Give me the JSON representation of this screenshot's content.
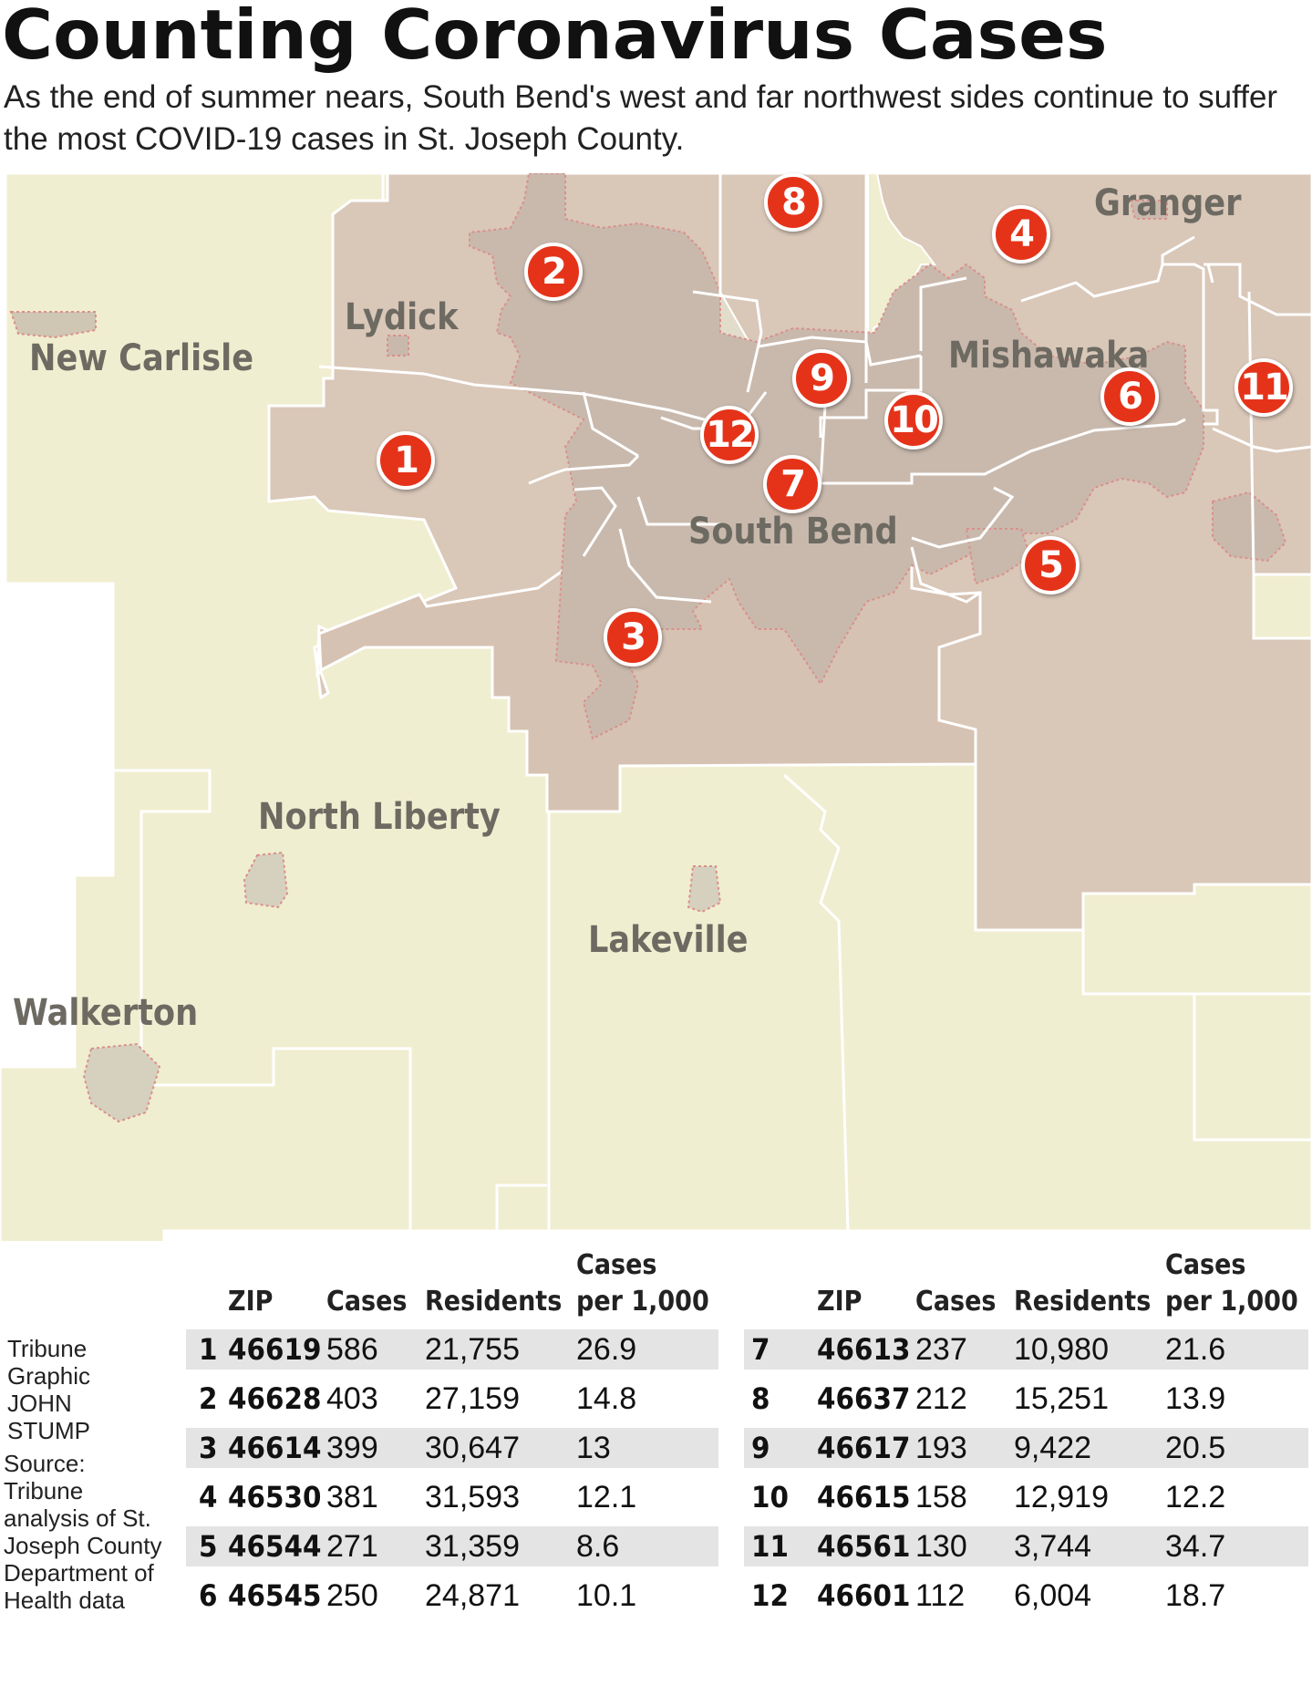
{
  "header": {
    "title": "Counting Coronavirus Cases",
    "subtitle": "As the end of summer nears, South Bend's west and far northwest sides continue to suffer the most COVID-19 cases in St. Joseph County."
  },
  "colors": {
    "rural_fill": "#f0eed0",
    "zip_fill": "#d9c7b8",
    "city_fill": "#c9b9ad",
    "boundary": "#ffffff",
    "marker": "#e5331a",
    "label": "#6d6a62",
    "row_shade": "#e4e4e4"
  },
  "map": {
    "places": [
      {
        "name": "New Carlisle"
      },
      {
        "name": "Lydick"
      },
      {
        "name": "Granger"
      },
      {
        "name": "Mishawaka"
      },
      {
        "name": "South Bend"
      },
      {
        "name": "North Liberty"
      },
      {
        "name": "Lakeville"
      },
      {
        "name": "Walkerton"
      }
    ],
    "markers": [
      "1",
      "2",
      "3",
      "4",
      "5",
      "6",
      "7",
      "8",
      "9",
      "10",
      "11",
      "12"
    ]
  },
  "credit": {
    "lines": [
      "Tribune",
      "Graphic",
      "JOHN",
      "STUMP"
    ],
    "source": "Source: Tribune analysis of St. Joseph County Department of Health data"
  },
  "table": {
    "headers": {
      "zip": "ZIP",
      "cases": "Cases",
      "residents": "Residents",
      "per1000_line1": "Cases",
      "per1000_line2": "per 1,000"
    },
    "left": [
      {
        "n": "1",
        "zip": "46619",
        "cases": "586",
        "residents": "21,755",
        "per1000": "26.9"
      },
      {
        "n": "2",
        "zip": "46628",
        "cases": "403",
        "residents": "27,159",
        "per1000": "14.8"
      },
      {
        "n": "3",
        "zip": "46614",
        "cases": "399",
        "residents": "30,647",
        "per1000": "13"
      },
      {
        "n": "4",
        "zip": "46530",
        "cases": "381",
        "residents": "31,593",
        "per1000": "12.1"
      },
      {
        "n": "5",
        "zip": "46544",
        "cases": "271",
        "residents": "31,359",
        "per1000": "8.6"
      },
      {
        "n": "6",
        "zip": "46545",
        "cases": "250",
        "residents": "24,871",
        "per1000": "10.1"
      }
    ],
    "right": [
      {
        "n": "7",
        "zip": "46613",
        "cases": "237",
        "residents": "10,980",
        "per1000": "21.6"
      },
      {
        "n": "8",
        "zip": "46637",
        "cases": "212",
        "residents": "15,251",
        "per1000": "13.9"
      },
      {
        "n": "9",
        "zip": "46617",
        "cases": "193",
        "residents": "9,422",
        "per1000": "20.5"
      },
      {
        "n": "10",
        "zip": "46615",
        "cases": "158",
        "residents": "12,919",
        "per1000": "12.2"
      },
      {
        "n": "11",
        "zip": "46561",
        "cases": "130",
        "residents": "3,744",
        "per1000": "34.7"
      },
      {
        "n": "12",
        "zip": "46601",
        "cases": "112",
        "residents": "6,004",
        "per1000": "18.7"
      }
    ]
  }
}
